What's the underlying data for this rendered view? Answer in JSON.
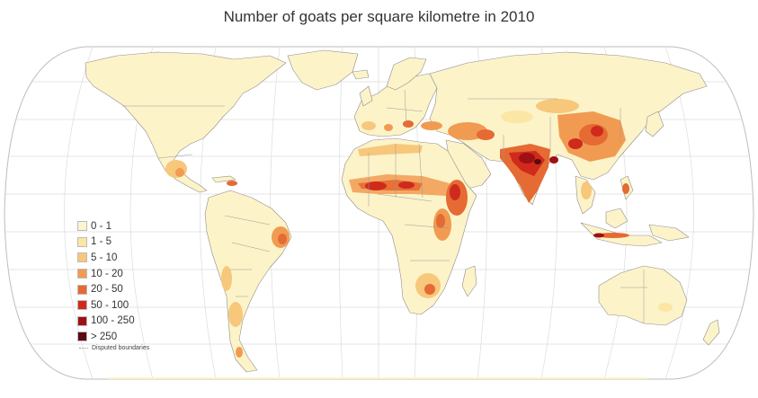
{
  "title": "Number of goats per square kilometre in 2010",
  "colors": {
    "ocean": "#ffffff",
    "graticule": "#d8d8d8",
    "land_base": "#fdf3c8",
    "border": "#888888"
  },
  "legend": [
    {
      "label": "0 - 1",
      "color": "#fdf5cf"
    },
    {
      "label": "1 - 5",
      "color": "#fbe6a4"
    },
    {
      "label": "5 - 10",
      "color": "#f7c77c"
    },
    {
      "label": "10 - 20",
      "color": "#f19b52"
    },
    {
      "label": "20 - 50",
      "color": "#e56a33"
    },
    {
      "label": "50 - 100",
      "color": "#cf2a1c"
    },
    {
      "label": "100 - 250",
      "color": "#9e1015"
    },
    {
      "label": "> 250",
      "color": "#5a0a10"
    }
  ],
  "disputed_label": "Disputed boundaries"
}
